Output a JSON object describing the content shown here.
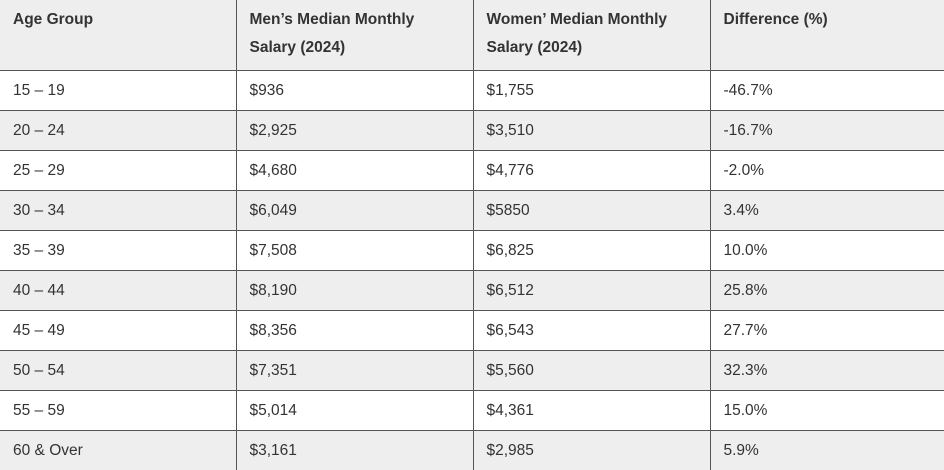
{
  "table": {
    "headers": [
      {
        "line1": "Age Group",
        "line2": ""
      },
      {
        "line1": "Men’s Median Monthly",
        "line2": "Salary (2024)"
      },
      {
        "line1": "Women’ Median Monthly",
        "line2": "Salary (2024)"
      },
      {
        "line1": "Difference (%)",
        "line2": ""
      }
    ],
    "rows": [
      [
        "15 – 19",
        "$936",
        "$1,755",
        "-46.7%"
      ],
      [
        "20 – 24",
        "$2,925",
        "$3,510",
        "-16.7%"
      ],
      [
        "25 – 29",
        "$4,680",
        "$4,776",
        "-2.0%"
      ],
      [
        "30 – 34",
        "$6,049",
        "$5850",
        "3.4%"
      ],
      [
        "35 – 39",
        "$7,508",
        "$6,825",
        "10.0%"
      ],
      [
        "40 – 44",
        "$8,190",
        "$6,512",
        "25.8%"
      ],
      [
        "45 – 49",
        "$8,356",
        "$6,543",
        "27.7%"
      ],
      [
        "50 – 54",
        "$7,351",
        "$5,560",
        "32.3%"
      ],
      [
        "55 – 59",
        "$5,014",
        "$4,361",
        "15.0%"
      ],
      [
        "60 & Over",
        "$3,161",
        "$2,985",
        "5.9%"
      ]
    ]
  },
  "colors": {
    "text": "#333333",
    "header_bg": "#eeeeee",
    "stripe_bg": "#eeeeee",
    "row_bg": "#ffffff",
    "border": "#555555"
  }
}
